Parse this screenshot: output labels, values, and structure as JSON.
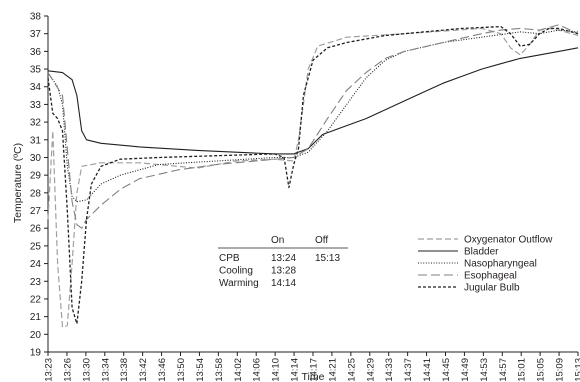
{
  "chart_data": {
    "type": "line",
    "xlabel": "Time",
    "ylabel": "Temperature (ºC)",
    "ylim": [
      19,
      38
    ],
    "y_ticks": [
      "19",
      "20",
      "21",
      "22",
      "23",
      "24",
      "25",
      "26",
      "27",
      "28",
      "29",
      "30",
      "31",
      "32",
      "33",
      "34",
      "35",
      "36",
      "37",
      "38"
    ],
    "x_tick_labels": [
      "13:23",
      "13:26",
      "13:30",
      "13:34",
      "13:38",
      "13:42",
      "13:46",
      "13:50",
      "13:54",
      "13:58",
      "14:02",
      "14:06",
      "14:10",
      "14:14",
      "14:17",
      "14:21",
      "14:25",
      "14:29",
      "14:33",
      "14:37",
      "14:41",
      "14:45",
      "14:49",
      "14:53",
      "14:57",
      "15:01",
      "15:05",
      "15:09",
      "15:13"
    ],
    "legend_position": "lower-right",
    "series": [
      {
        "name": "Oxygenator Outflow",
        "color": "#a0a0a0",
        "dash": "dashed-gray",
        "points": [
          [
            "13:23",
            26.5
          ],
          [
            "13:24",
            31.5
          ],
          [
            "13:25",
            24.0
          ],
          [
            "13:26",
            20.4
          ],
          [
            "13:27",
            20.5
          ],
          [
            "13:28",
            24.0
          ],
          [
            "13:29",
            28.0
          ],
          [
            "13:30",
            29.5
          ],
          [
            "13:34",
            29.7
          ],
          [
            "13:42",
            29.7
          ],
          [
            "13:54",
            29.4
          ],
          [
            "14:02",
            29.8
          ],
          [
            "14:10",
            29.9
          ],
          [
            "14:14",
            29.8
          ],
          [
            "14:15",
            31.0
          ],
          [
            "14:17",
            35.0
          ],
          [
            "14:19",
            36.3
          ],
          [
            "14:25",
            36.8
          ],
          [
            "14:37",
            37.0
          ],
          [
            "14:53",
            37.3
          ],
          [
            "14:57",
            37.0
          ],
          [
            "14:59",
            36.2
          ],
          [
            "15:01",
            35.8
          ],
          [
            "15:03",
            36.4
          ],
          [
            "15:05",
            37.2
          ],
          [
            "15:07",
            37.3
          ],
          [
            "15:09",
            37.2
          ],
          [
            "15:13",
            36.9
          ]
        ]
      },
      {
        "name": "Bladder",
        "color": "#231f20",
        "dash": "solid",
        "points": [
          [
            "13:23",
            34.9
          ],
          [
            "13:26",
            34.8
          ],
          [
            "13:28",
            34.4
          ],
          [
            "13:29",
            33.5
          ],
          [
            "13:30",
            31.5
          ],
          [
            "13:31",
            31.0
          ],
          [
            "13:34",
            30.8
          ],
          [
            "13:42",
            30.6
          ],
          [
            "13:54",
            30.4
          ],
          [
            "14:02",
            30.3
          ],
          [
            "14:10",
            30.2
          ],
          [
            "14:14",
            30.2
          ],
          [
            "14:17",
            30.5
          ],
          [
            "14:20",
            31.3
          ],
          [
            "14:25",
            31.8
          ],
          [
            "14:29",
            32.2
          ],
          [
            "14:33",
            32.7
          ],
          [
            "14:37",
            33.2
          ],
          [
            "14:41",
            33.7
          ],
          [
            "14:45",
            34.2
          ],
          [
            "14:49",
            34.6
          ],
          [
            "14:53",
            35.0
          ],
          [
            "14:57",
            35.3
          ],
          [
            "15:01",
            35.6
          ],
          [
            "15:05",
            35.8
          ],
          [
            "15:09",
            36.0
          ],
          [
            "15:13",
            36.2
          ]
        ]
      },
      {
        "name": "Nasopharyngeal",
        "color": "#231f20",
        "dash": "dotted",
        "points": [
          [
            "13:23",
            34.8
          ],
          [
            "13:25",
            34.0
          ],
          [
            "13:26",
            33.0
          ],
          [
            "13:27",
            29.5
          ],
          [
            "13:28",
            27.8
          ],
          [
            "13:29",
            27.5
          ],
          [
            "13:31",
            27.6
          ],
          [
            "13:34",
            28.5
          ],
          [
            "13:38",
            29.0
          ],
          [
            "13:46",
            29.6
          ],
          [
            "13:58",
            29.8
          ],
          [
            "14:10",
            30.0
          ],
          [
            "14:14",
            30.0
          ],
          [
            "14:17",
            30.3
          ],
          [
            "14:21",
            31.5
          ],
          [
            "14:25",
            33.0
          ],
          [
            "14:29",
            34.5
          ],
          [
            "14:33",
            35.5
          ],
          [
            "14:37",
            36.0
          ],
          [
            "14:45",
            36.5
          ],
          [
            "14:53",
            36.8
          ],
          [
            "15:01",
            37.1
          ],
          [
            "15:05",
            37.0
          ],
          [
            "15:09",
            37.2
          ],
          [
            "15:13",
            37.1
          ]
        ]
      },
      {
        "name": "Esophageal",
        "color": "#808080",
        "dash": "long-dash",
        "points": [
          [
            "13:23",
            34.8
          ],
          [
            "13:26",
            33.5
          ],
          [
            "13:27",
            30.5
          ],
          [
            "13:28",
            27.5
          ],
          [
            "13:29",
            26.2
          ],
          [
            "13:30",
            26.0
          ],
          [
            "13:31",
            26.5
          ],
          [
            "13:34",
            27.3
          ],
          [
            "13:38",
            28.2
          ],
          [
            "13:42",
            28.8
          ],
          [
            "13:50",
            29.3
          ],
          [
            "13:58",
            29.6
          ],
          [
            "14:06",
            29.8
          ],
          [
            "14:14",
            30.0
          ],
          [
            "14:17",
            30.5
          ],
          [
            "14:21",
            32.2
          ],
          [
            "14:25",
            33.8
          ],
          [
            "14:29",
            34.8
          ],
          [
            "14:33",
            35.6
          ],
          [
            "14:37",
            36.0
          ],
          [
            "14:45",
            36.5
          ],
          [
            "14:53",
            37.0
          ],
          [
            "14:57",
            37.2
          ],
          [
            "15:01",
            37.3
          ],
          [
            "15:05",
            37.2
          ],
          [
            "15:09",
            37.5
          ],
          [
            "15:13",
            37.0
          ]
        ]
      },
      {
        "name": "Jugular Bulb",
        "color": "#231f20",
        "dash": "short-dash",
        "points": [
          [
            "13:23",
            34.5
          ],
          [
            "13:24",
            32.5
          ],
          [
            "13:25",
            32.2
          ],
          [
            "13:26",
            31.5
          ],
          [
            "13:27",
            27.0
          ],
          [
            "13:28",
            21.5
          ],
          [
            "13:29",
            20.6
          ],
          [
            "13:30",
            23.0
          ],
          [
            "13:31",
            26.5
          ],
          [
            "13:32",
            28.5
          ],
          [
            "13:34",
            29.5
          ],
          [
            "13:38",
            29.9
          ],
          [
            "13:46",
            30.0
          ],
          [
            "13:58",
            30.1
          ],
          [
            "14:10",
            30.2
          ],
          [
            "14:12",
            30.0
          ],
          [
            "14:13",
            28.3
          ],
          [
            "14:14",
            29.6
          ],
          [
            "14:15",
            30.5
          ],
          [
            "14:16",
            33.5
          ],
          [
            "14:18",
            35.5
          ],
          [
            "14:21",
            36.2
          ],
          [
            "14:25",
            36.5
          ],
          [
            "14:33",
            36.9
          ],
          [
            "14:41",
            37.1
          ],
          [
            "14:49",
            37.3
          ],
          [
            "14:57",
            37.4
          ],
          [
            "14:59",
            37.0
          ],
          [
            "15:01",
            36.3
          ],
          [
            "15:03",
            36.4
          ],
          [
            "15:05",
            37.0
          ],
          [
            "15:07",
            37.3
          ],
          [
            "15:09",
            37.3
          ],
          [
            "15:13",
            37.0
          ]
        ]
      }
    ],
    "annotation_table": {
      "headers": [
        "",
        "On",
        "Off"
      ],
      "rows": [
        [
          "CPB",
          "13:24",
          "15:13"
        ],
        [
          "Cooling",
          "13:28",
          ""
        ],
        [
          "Warming",
          "14:14",
          ""
        ]
      ]
    }
  }
}
